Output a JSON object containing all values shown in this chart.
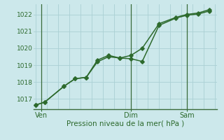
{
  "xlabel": "Pression niveau de la mer( hPa )",
  "background_color": "#cce8eb",
  "grid_color": "#aad0d4",
  "line_color": "#2d6a2d",
  "marker_color": "#2d6a2d",
  "vline_color": "#3a6b3a",
  "ylim": [
    1016.4,
    1022.6
  ],
  "yticks": [
    1017,
    1018,
    1019,
    1020,
    1021,
    1022
  ],
  "day_labels": [
    "Ven",
    "Dim",
    "Sam"
  ],
  "day_positions": [
    0.5,
    8.5,
    13.5
  ],
  "vline_positions": [
    0.5,
    8.5,
    13.5
  ],
  "series1_x": [
    0.0,
    0.8,
    2.5,
    3.5,
    4.5,
    5.5,
    6.5,
    7.5,
    8.5,
    9.5,
    11.0,
    12.5,
    13.5,
    14.5,
    15.5
  ],
  "series1_y": [
    1016.65,
    1016.82,
    1017.75,
    1018.2,
    1018.28,
    1019.2,
    1019.5,
    1019.42,
    1019.38,
    1019.22,
    1021.35,
    1021.78,
    1021.95,
    1022.02,
    1022.2
  ],
  "series2_x": [
    0.0,
    0.8,
    2.5,
    3.5,
    4.5,
    5.5,
    6.5,
    7.5,
    8.5,
    9.5,
    11.0,
    12.5,
    13.5,
    14.5,
    15.5
  ],
  "series2_y": [
    1016.65,
    1016.82,
    1017.75,
    1018.2,
    1018.28,
    1019.3,
    1019.58,
    1019.42,
    1019.58,
    1020.0,
    1021.45,
    1021.82,
    1022.0,
    1022.08,
    1022.28
  ],
  "xlim": [
    -0.2,
    16.2
  ]
}
